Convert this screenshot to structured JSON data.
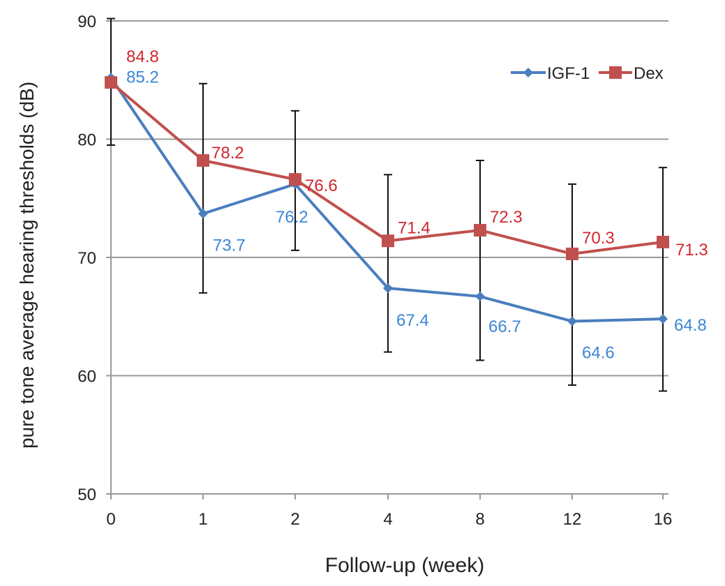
{
  "chart_data": {
    "type": "line",
    "title": "",
    "xlabel": "Follow-up (week)",
    "ylabel": "pure tone average hearing thresholds (dB)",
    "categories": [
      "0",
      "1",
      "2",
      "4",
      "8",
      "12",
      "16"
    ],
    "ylim": [
      50,
      90
    ],
    "yticks": [
      "50",
      "60",
      "70",
      "80",
      "90"
    ],
    "grid": true,
    "legend_position": "top-right",
    "series": [
      {
        "name": "IGF-1",
        "color": "#4a7ebf",
        "marker": "diamond",
        "values": [
          85.2,
          73.7,
          76.2,
          67.4,
          66.7,
          64.6,
          64.8
        ],
        "labels": [
          "85.2",
          "73.7",
          "76.2",
          "67.4",
          "66.7",
          "64.6",
          "64.8"
        ],
        "label_color": "#3b86d6"
      },
      {
        "name": "Dex",
        "color": "#c0504d",
        "marker": "square",
        "values": [
          84.8,
          78.2,
          76.6,
          71.4,
          72.3,
          70.3,
          71.3
        ],
        "labels": [
          "84.8",
          "78.2",
          "76.6",
          "71.4",
          "72.3",
          "70.3",
          "71.3"
        ],
        "label_color": "#d0262e"
      }
    ],
    "error_bars": {
      "high": [
        90.2,
        84.7,
        82.4,
        77.0,
        78.2,
        76.2,
        77.6
      ],
      "low": [
        79.5,
        67.0,
        70.6,
        62.0,
        61.3,
        59.2,
        58.7
      ]
    }
  }
}
